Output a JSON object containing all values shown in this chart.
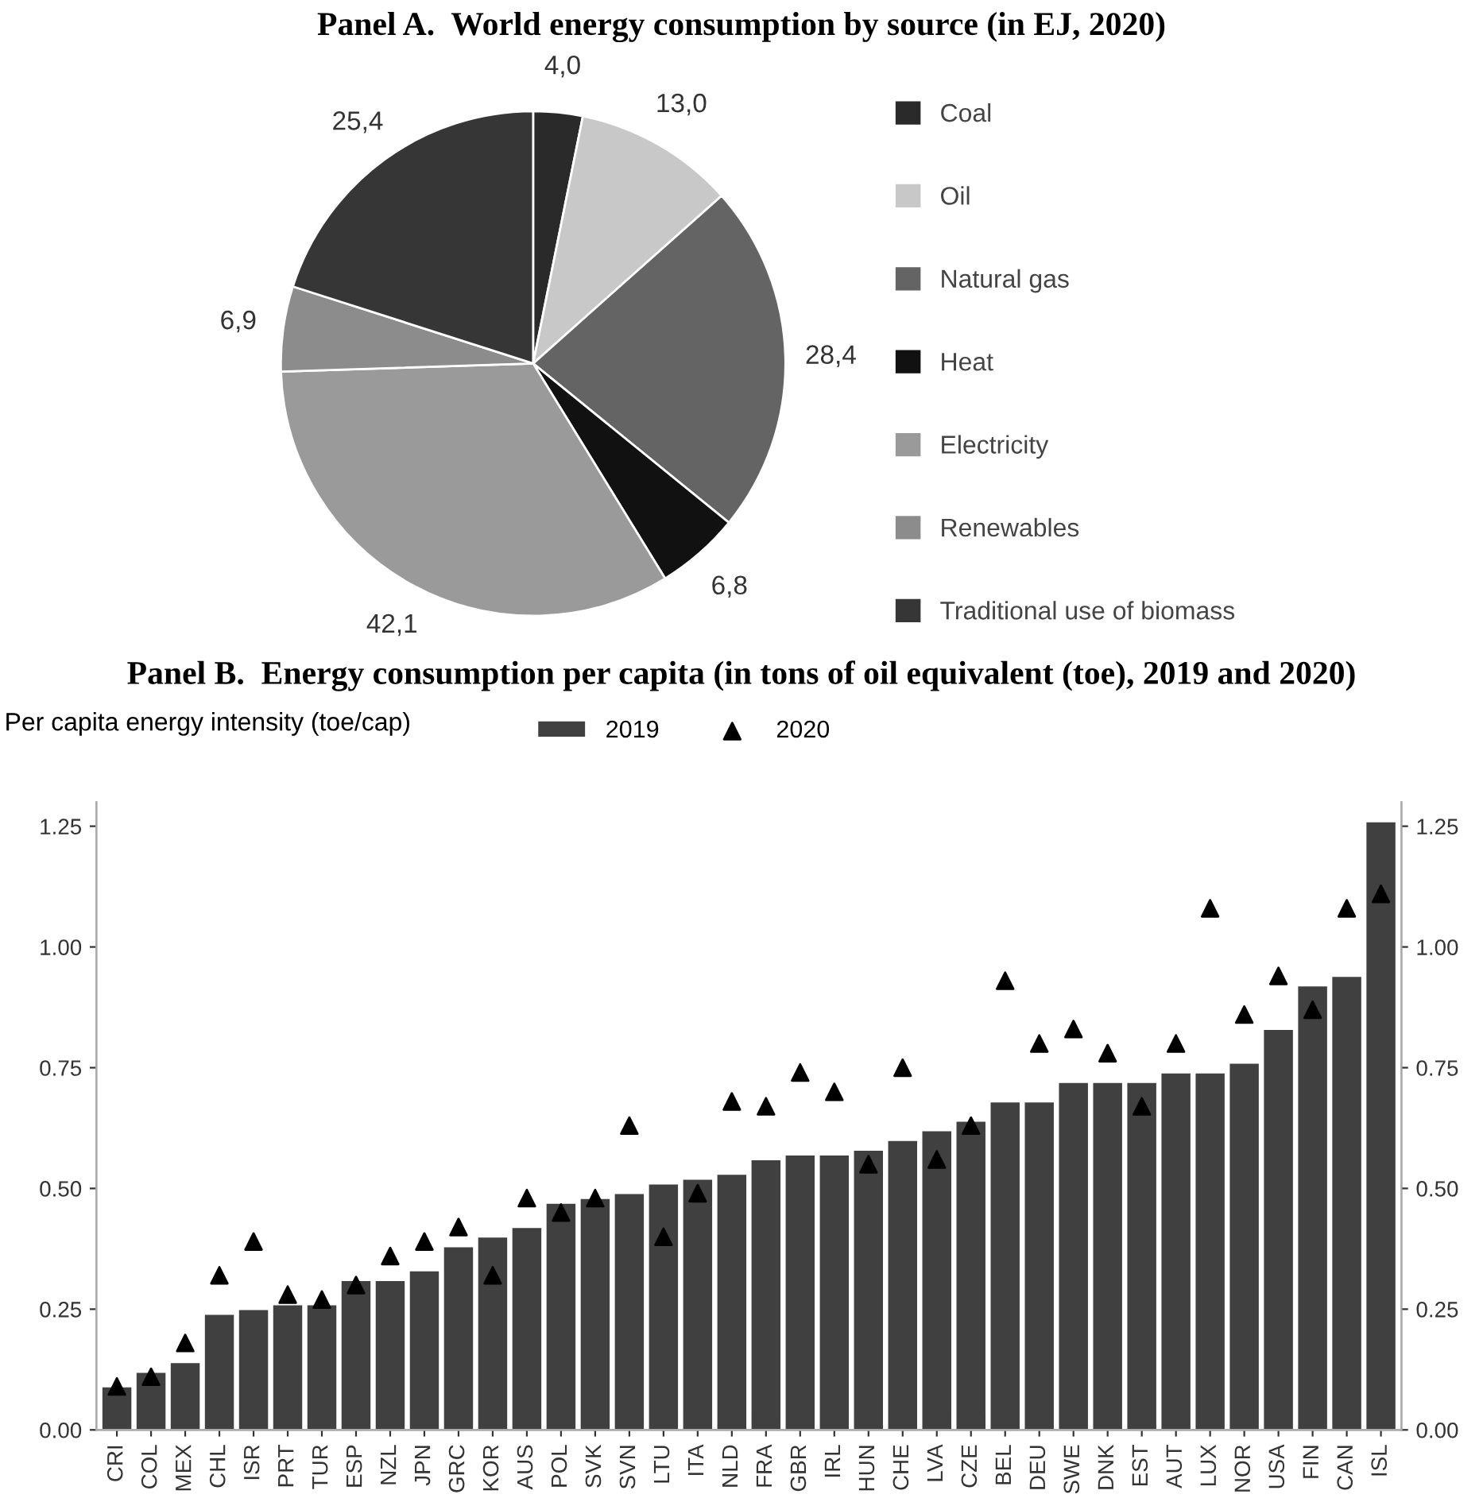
{
  "chart_data": [
    {
      "type": "pie",
      "title": "Panel A.  World energy consumption by source (in EJ, 2020)",
      "categories": [
        "Coal",
        "Oil",
        "Natural gas",
        "Heat",
        "Electricity",
        "Renewables",
        "Traditional use of biomass"
      ],
      "values": [
        4.0,
        13.0,
        28.4,
        6.8,
        42.1,
        6.9,
        25.4
      ],
      "value_labels": [
        "4,0",
        "13,0",
        "28,4",
        "6,8",
        "42,1",
        "6,9",
        "25,4"
      ],
      "colors": [
        "#2a2a2a",
        "#c8c8c8",
        "#646464",
        "#111111",
        "#9a9a9a",
        "#8c8c8c",
        "#363636"
      ],
      "legend": "right"
    },
    {
      "type": "bar",
      "title": "Panel B.  Energy consumption per capita (in tons of oil equivalent (toe), 2019 and 2020)",
      "ylabel": "Per capita energy intensity (toe/cap)",
      "categories": [
        "CRI",
        "COL",
        "MEX",
        "CHL",
        "ISR",
        "PRT",
        "TUR",
        "ESP",
        "NZL",
        "JPN",
        "GRC",
        "KOR",
        "AUS",
        "POL",
        "SVK",
        "SVN",
        "LTU",
        "ITA",
        "NLD",
        "FRA",
        "GBR",
        "IRL",
        "HUN",
        "CHE",
        "LVA",
        "CZE",
        "BEL",
        "DEU",
        "SWE",
        "DNK",
        "EST",
        "AUT",
        "LUX",
        "NOR",
        "USA",
        "FIN",
        "CAN",
        "ISL"
      ],
      "series": [
        {
          "name": "2019",
          "type": "bar",
          "color": "#404040",
          "values": [
            0.09,
            0.12,
            0.14,
            0.24,
            0.25,
            0.26,
            0.26,
            0.31,
            0.31,
            0.33,
            0.38,
            0.4,
            0.42,
            0.47,
            0.48,
            0.49,
            0.51,
            0.52,
            0.53,
            0.56,
            0.57,
            0.57,
            0.58,
            0.6,
            0.62,
            0.64,
            0.68,
            0.68,
            0.72,
            0.72,
            0.72,
            0.74,
            0.74,
            0.76,
            0.83,
            0.92,
            0.94,
            1.26
          ]
        },
        {
          "name": "2020",
          "type": "scatter",
          "color": "#000000",
          "values": [
            0.09,
            0.11,
            0.18,
            0.32,
            0.39,
            0.28,
            0.27,
            0.3,
            0.36,
            0.39,
            0.42,
            0.32,
            0.48,
            0.45,
            0.48,
            0.63,
            0.4,
            0.49,
            0.68,
            0.67,
            0.74,
            0.7,
            0.55,
            0.75,
            0.56,
            0.63,
            0.93,
            0.8,
            0.83,
            0.78,
            0.67,
            0.8,
            1.08,
            0.86,
            0.94,
            0.87,
            1.08,
            1.11
          ]
        }
      ],
      "marker": "triangle",
      "ylim": [
        0,
        1.3
      ],
      "yticks": [
        {
          "value": 0,
          "label": "0.00"
        },
        {
          "value": 0.25,
          "label": "0.25"
        },
        {
          "value": 0.5,
          "label": "0.50"
        },
        {
          "value": 0.75,
          "label": "0.75"
        },
        {
          "value": 1.0,
          "label": "1.00"
        },
        {
          "value": 1.25,
          "label": "1.25"
        }
      ],
      "y2lim": [
        0,
        1.3
      ],
      "y2ticks": [
        {
          "value": 0,
          "label": "0.00"
        },
        {
          "value": 0.25,
          "label": "0.25"
        },
        {
          "value": 0.5,
          "label": "0.50"
        },
        {
          "value": 0.75,
          "label": "0.75"
        },
        {
          "value": 1.0,
          "label": "1.00"
        },
        {
          "value": 1.25,
          "label": "1.25"
        }
      ],
      "legend": "top",
      "grid": false
    }
  ]
}
